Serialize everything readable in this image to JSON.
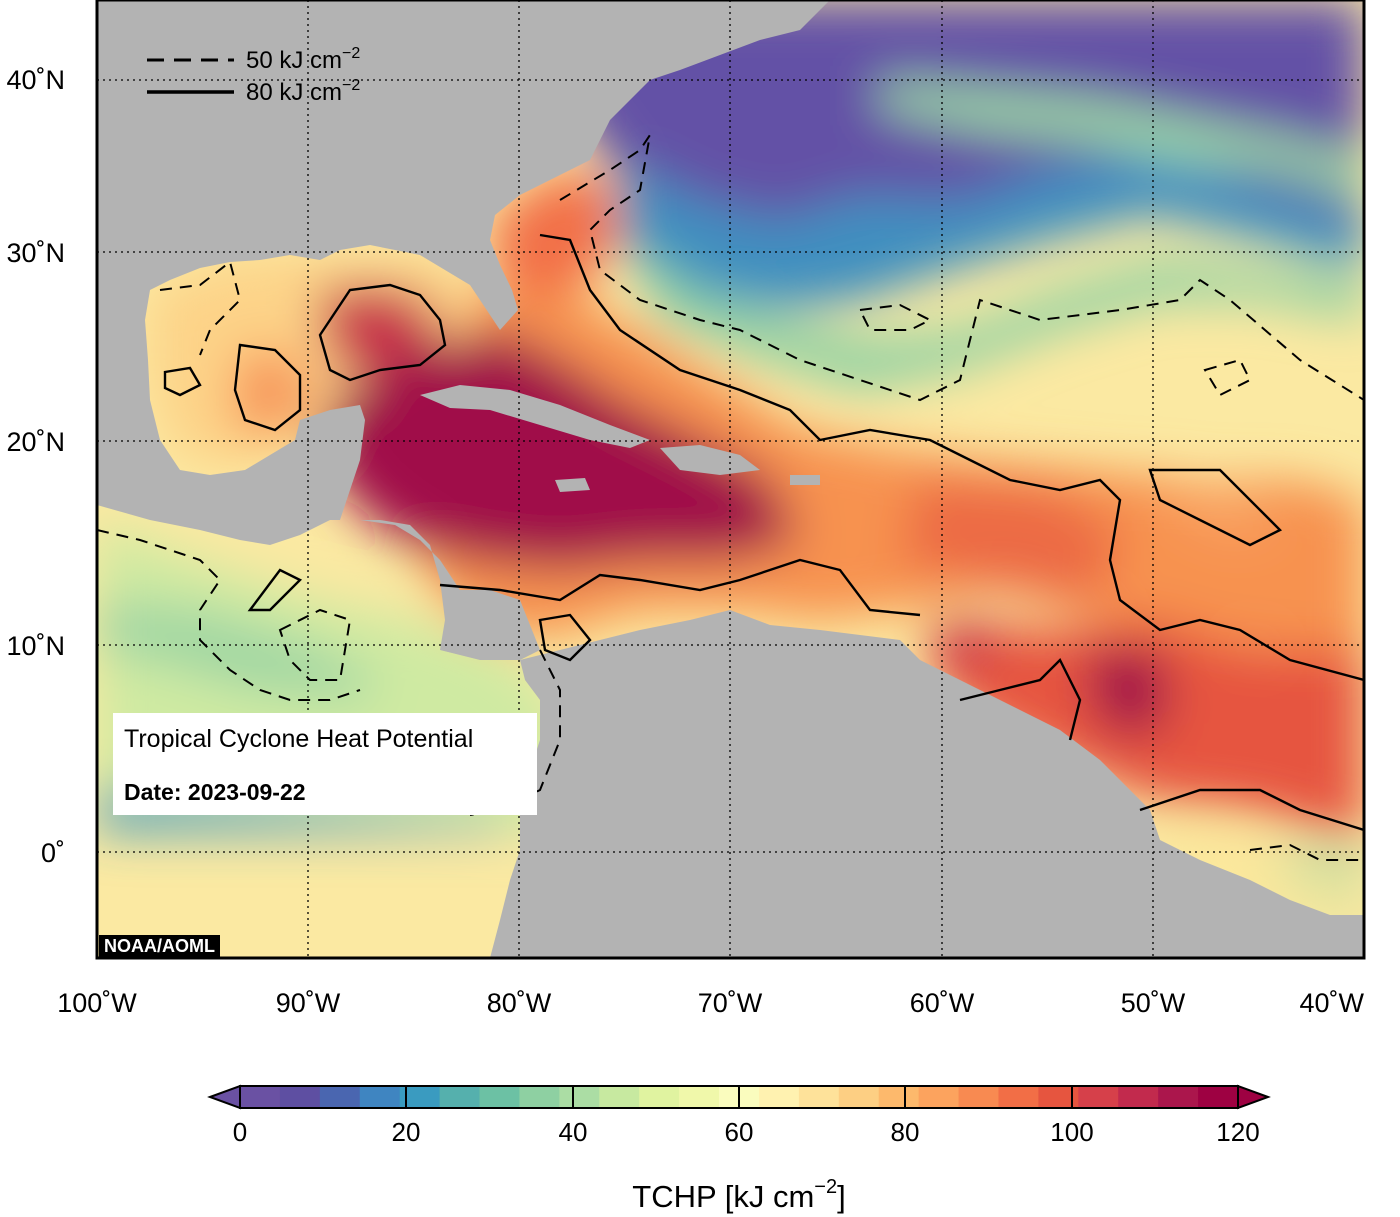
{
  "info_box": {
    "title": "Tropical Cyclone Heat Potential",
    "date_label": "Date: 2023-09-22"
  },
  "credit": "NOAA/AOML",
  "legend": {
    "dashed_label": "50 kJ cm",
    "solid_label": "80 kJ cm",
    "unit_exponent": "−2"
  },
  "axes": {
    "x_ticks": [
      "100˚W",
      "90˚W",
      "80˚W",
      "70˚W",
      "60˚W",
      "50˚W",
      "40˚W"
    ],
    "y_ticks": [
      "40˚N",
      "30˚N",
      "20˚N",
      "10˚N",
      "0˚"
    ]
  },
  "colorbar": {
    "tick_labels": [
      "0",
      "20",
      "40",
      "60",
      "80",
      "100",
      "120"
    ],
    "title": "TCHP [kJ cm",
    "title_exponent": "−2",
    "title_close": "]",
    "colors": [
      "#6a51a3",
      "#5e4fa2",
      "#4a66b0",
      "#3f85c1",
      "#3a9bc0",
      "#55b0ad",
      "#6cc1a4",
      "#8ed0a2",
      "#abdda4",
      "#c7e9a0",
      "#e0f3a0",
      "#f0f8aa",
      "#fafcbe",
      "#fff2b0",
      "#fee29a",
      "#fdcf83",
      "#fdb96c",
      "#fca35e",
      "#f88a51",
      "#f26e46",
      "#e6553f",
      "#d6404a",
      "#c22a4d",
      "#ab164c",
      "#9e0142"
    ]
  },
  "colors": {
    "land": "#b3b3b3",
    "deep_purple": "#6351a6",
    "hot": "#a0114a"
  }
}
